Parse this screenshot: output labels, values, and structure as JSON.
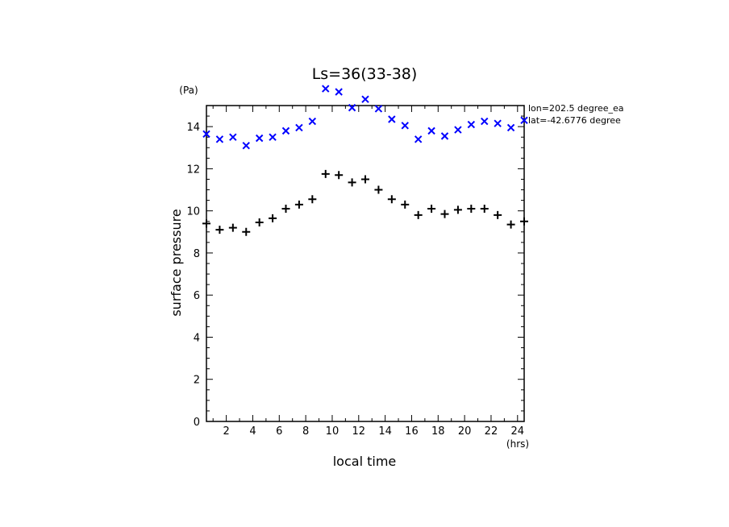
{
  "chart_data": {
    "type": "scatter",
    "title": "Ls=36(33-38)",
    "xlabel": "local time",
    "ylabel": "surface pressure",
    "x_unit": "(hrs)",
    "y_unit": "(Pa)",
    "xlim": [
      0.5,
      24.5
    ],
    "ylim": [
      0,
      15
    ],
    "x_ticks": [
      2,
      4,
      6,
      8,
      10,
      12,
      14,
      16,
      18,
      20,
      22,
      24
    ],
    "y_ticks": [
      0,
      2,
      4,
      6,
      8,
      10,
      12,
      14
    ],
    "annotations": [
      "lon=202.5 degree_ea",
      "lat=-42.6776 degree"
    ],
    "series": [
      {
        "marker": "x",
        "color": "#0000ff",
        "x": [
          0.5,
          1.5,
          2.5,
          3.5,
          4.5,
          5.5,
          6.5,
          7.5,
          8.5,
          9.5,
          10.5,
          11.5,
          12.5,
          13.5,
          14.5,
          15.5,
          16.5,
          17.5,
          18.5,
          19.5,
          20.5,
          21.5,
          22.5,
          23.5,
          24.5
        ],
        "y": [
          13.65,
          13.4,
          13.5,
          13.1,
          13.45,
          13.5,
          13.8,
          13.95,
          14.25,
          15.8,
          15.65,
          14.9,
          15.3,
          14.85,
          14.35,
          14.05,
          13.4,
          13.8,
          13.55,
          13.85,
          14.1,
          14.25,
          14.15,
          13.95,
          14.3
        ]
      },
      {
        "marker": "+",
        "color": "#000000",
        "x": [
          0.5,
          1.5,
          2.5,
          3.5,
          4.5,
          5.5,
          6.5,
          7.5,
          8.5,
          9.5,
          10.5,
          11.5,
          12.5,
          13.5,
          14.5,
          15.5,
          16.5,
          17.5,
          18.5,
          19.5,
          20.5,
          21.5,
          22.5,
          23.5,
          24.5
        ],
        "y": [
          9.4,
          9.1,
          9.2,
          9.0,
          9.45,
          9.65,
          10.1,
          10.3,
          10.55,
          11.75,
          11.7,
          11.35,
          11.5,
          11.0,
          10.55,
          10.3,
          9.8,
          10.1,
          9.85,
          10.05,
          10.1,
          10.1,
          9.8,
          9.35,
          9.5
        ]
      }
    ]
  }
}
